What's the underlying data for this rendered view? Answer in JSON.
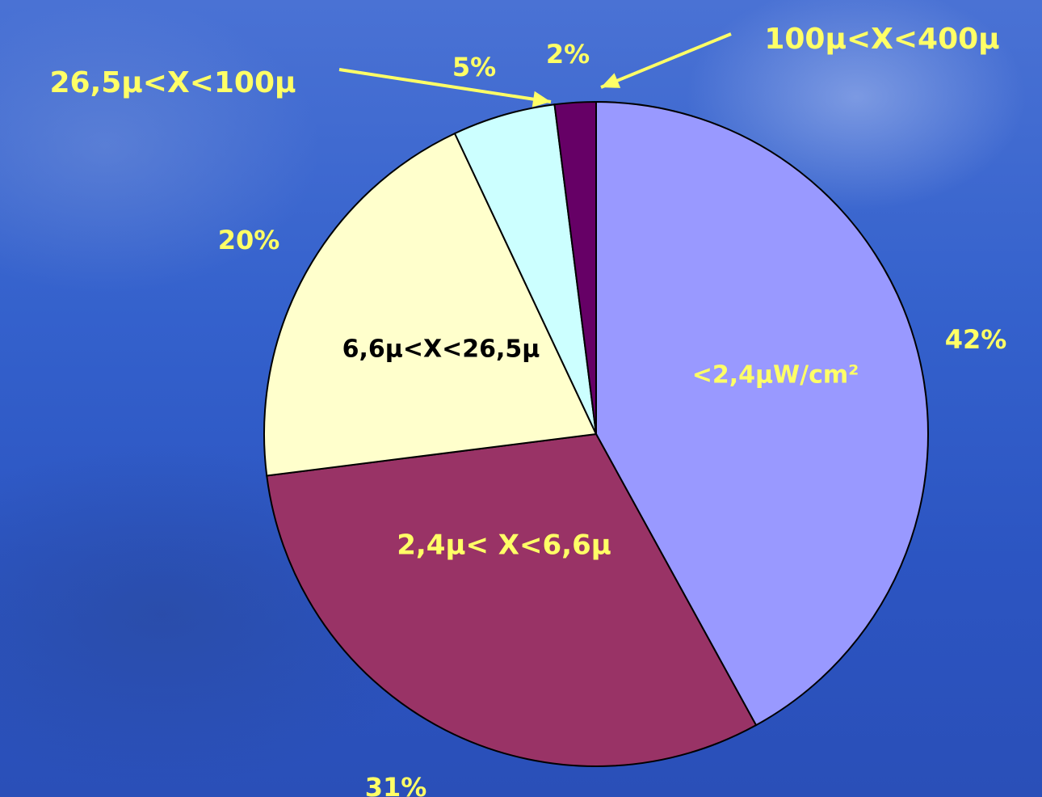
{
  "chart_data": {
    "type": "pie",
    "title": "",
    "start_angle_deg": 0,
    "direction": "clockwise",
    "slices": [
      {
        "label": "<2,4µW/cm²",
        "value": 42,
        "pct_label": "42%",
        "color": "#9999ff",
        "label_color": "#ffff66"
      },
      {
        "label": "2,4µ< X<6,6µ",
        "value": 31,
        "pct_label": "31%",
        "color": "#993366",
        "label_color": "#ffff66"
      },
      {
        "label": "6,6µ<X<26,5µ",
        "value": 20,
        "pct_label": "20%",
        "color": "#ffffcc",
        "label_color": "#000000"
      },
      {
        "label": "26,5µ<X<100µ",
        "value": 5,
        "pct_label": "5%",
        "color": "#ccffff",
        "label_color": "#ffff66"
      },
      {
        "label": "100µ<X<400µ",
        "value": 2,
        "pct_label": "2%",
        "color": "#660066",
        "label_color": "#ffff66"
      }
    ],
    "pct_label_color": "#ffff66",
    "arrow_color": "#ffff66"
  }
}
